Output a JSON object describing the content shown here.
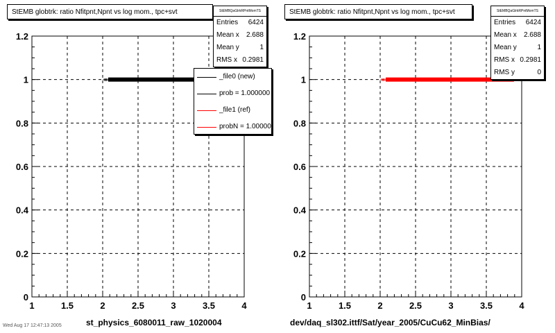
{
  "chart_data": [
    {
      "type": "scatter",
      "title": "StEMB globtrk: ratio Nfitpnt,Npnt vs log mom., tpc+svt",
      "xlim": [
        1,
        4
      ],
      "ylim": [
        0,
        1.2
      ],
      "x_ticks": [
        "1",
        "1.5",
        "2",
        "2.5",
        "3",
        "3.5",
        "4"
      ],
      "y_ticks": [
        "0",
        "0.2",
        "0.4",
        "0.6",
        "0.8",
        "1",
        "1.2"
      ],
      "grid": true,
      "point_color": "#000000",
      "band": {
        "x_from": 2.02,
        "x_to": 3.95,
        "y": 1.0
      },
      "stats": {
        "header": "StEMBQaGlrkRPntMomTS",
        "rows": [
          {
            "label": "Entries",
            "value": "6424"
          },
          {
            "label": "Mean x",
            "value": "2.688"
          },
          {
            "label": "Mean y",
            "value": "1"
          },
          {
            "label": "RMS x",
            "value": "0.2981"
          }
        ]
      },
      "legend": {
        "placement": "top-right",
        "items": [
          {
            "label": "_file0 (new)",
            "color": "#000000"
          },
          {
            "label": "prob = 1.000000",
            "color": "#000000"
          },
          {
            "label": "_file1 (ref)",
            "color": "#ff0000"
          },
          {
            "label": "probN = 1.000000",
            "color": "#ff0000"
          }
        ]
      },
      "xlabel": "st_physics_6080011_raw_1020004"
    },
    {
      "type": "scatter",
      "title": "StEMB globtrk: ratio Nfitpnt,Npnt vs log mom., tpc+svt",
      "xlim": [
        1,
        4
      ],
      "ylim": [
        0,
        1.2
      ],
      "x_ticks": [
        "1",
        "1.5",
        "2",
        "2.5",
        "3",
        "3.5",
        "4"
      ],
      "y_ticks": [
        "0",
        "0.2",
        "0.4",
        "0.6",
        "0.8",
        "1",
        "1.2"
      ],
      "grid": true,
      "point_color": "#ff0000",
      "band": {
        "x_from": 2.02,
        "x_to": 3.95,
        "y": 1.0
      },
      "stats": {
        "header": "StEMBQaGlrkRPntMomTS",
        "rows": [
          {
            "label": "Entries",
            "value": "6424"
          },
          {
            "label": "Mean x",
            "value": "2.688"
          },
          {
            "label": "Mean y",
            "value": "1"
          },
          {
            "label": "RMS x",
            "value": "0.2981"
          },
          {
            "label": "RMS y",
            "value": "0"
          }
        ]
      },
      "xlabel": "dev/daq_sl302.ittf/Sat/year_2005/CuCu62_MinBias/"
    }
  ],
  "corner_note": "Wed Aug 17 12:47:13 2005"
}
